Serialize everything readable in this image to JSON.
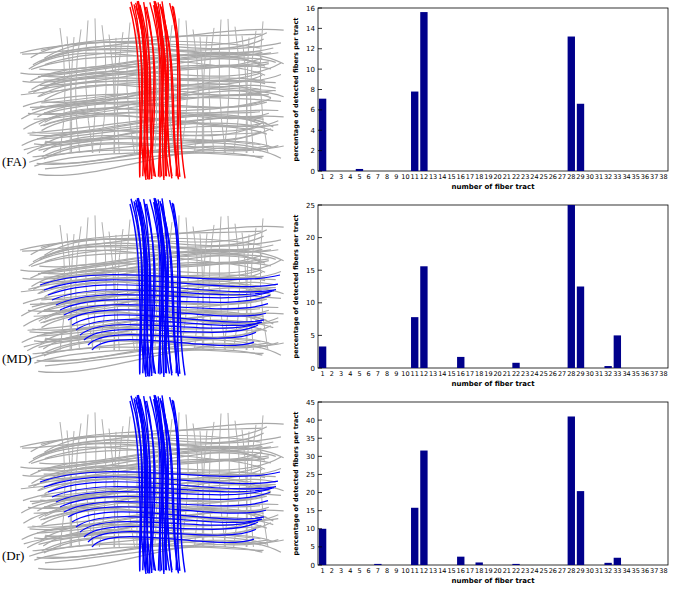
{
  "chart_data": [
    {
      "type": "bar",
      "panel_label": "(FA)",
      "x_label": "number of fiber tract",
      "y_label": "percentage of detected fibers per tract",
      "categories": [
        "1",
        "2",
        "3",
        "4",
        "5",
        "6",
        "7",
        "8",
        "9",
        "10",
        "11",
        "12",
        "13",
        "14",
        "15",
        "16",
        "17",
        "18",
        "19",
        "20",
        "21",
        "22",
        "23",
        "24",
        "25",
        "26",
        "27",
        "28",
        "29",
        "30",
        "31",
        "32",
        "33",
        "34",
        "35",
        "36",
        "37",
        "38"
      ],
      "values": [
        7.1,
        0,
        0,
        0,
        0.2,
        0,
        0,
        0,
        0,
        0,
        7.8,
        15.6,
        0,
        0,
        0,
        0,
        0,
        0,
        0,
        0,
        0,
        0,
        0,
        0,
        0,
        0,
        0,
        13.2,
        6.6,
        0,
        0,
        0,
        0,
        0,
        0,
        0,
        0,
        0
      ],
      "color": "#00008b",
      "ylim": [
        0,
        16
      ],
      "yticks": [
        0,
        2,
        4,
        6,
        8,
        10,
        12,
        14,
        16
      ]
    },
    {
      "type": "bar",
      "panel_label": "(MD)",
      "x_label": "number of fiber tract",
      "y_label": "percentage of detected fibers per tract",
      "categories": [
        "1",
        "2",
        "3",
        "4",
        "5",
        "6",
        "7",
        "8",
        "9",
        "10",
        "11",
        "12",
        "13",
        "14",
        "15",
        "16",
        "17",
        "18",
        "19",
        "20",
        "21",
        "22",
        "23",
        "24",
        "25",
        "26",
        "27",
        "28",
        "29",
        "30",
        "31",
        "32",
        "33",
        "34",
        "35",
        "36",
        "37",
        "38"
      ],
      "values": [
        3.3,
        0,
        0,
        0,
        0,
        0,
        0,
        0,
        0,
        0,
        7.8,
        15.6,
        0,
        0,
        0,
        1.7,
        0,
        0,
        0,
        0,
        0,
        0.8,
        0,
        0,
        0,
        0,
        0,
        25,
        12.5,
        0,
        0,
        0.3,
        5.0,
        0,
        0,
        0,
        0,
        0
      ],
      "color": "#00008b",
      "ylim": [
        0,
        25
      ],
      "yticks": [
        0,
        5,
        10,
        15,
        20,
        25
      ]
    },
    {
      "type": "bar",
      "panel_label": "(Dr)",
      "x_label": "number of fiber tract",
      "y_label": "percentage of detected fibers per tract",
      "categories": [
        "1",
        "2",
        "3",
        "4",
        "5",
        "6",
        "7",
        "8",
        "9",
        "10",
        "11",
        "12",
        "13",
        "14",
        "15",
        "16",
        "17",
        "18",
        "19",
        "20",
        "21",
        "22",
        "23",
        "24",
        "25",
        "26",
        "27",
        "28",
        "29",
        "30",
        "31",
        "32",
        "33",
        "34",
        "35",
        "36",
        "37",
        "38"
      ],
      "values": [
        10,
        0,
        0,
        0,
        0,
        0,
        0.3,
        0,
        0,
        0,
        15.8,
        31.6,
        0,
        0,
        0,
        2.3,
        0,
        0.7,
        0,
        0,
        0,
        0.3,
        0,
        0,
        0,
        0,
        0,
        41,
        20.4,
        0,
        0,
        0.6,
        2.0,
        0,
        0,
        0,
        0,
        0
      ],
      "color": "#00008b",
      "ylim": [
        0,
        45
      ],
      "yticks": [
        0,
        5,
        10,
        15,
        20,
        25,
        30,
        35,
        40,
        45
      ]
    }
  ]
}
